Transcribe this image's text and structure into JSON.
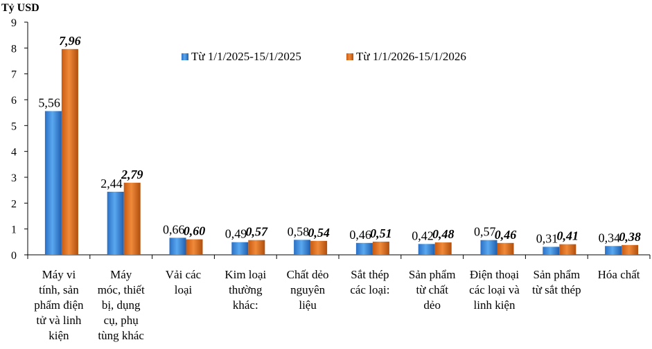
{
  "chart_data": {
    "type": "bar",
    "ylabel": "Tỷ USD",
    "ylim": [
      0,
      9
    ],
    "yticks": [
      0,
      1,
      2,
      3,
      4,
      5,
      6,
      7,
      8,
      9
    ],
    "grid": false,
    "legend_position": "top-center",
    "categories": [
      [
        "Máy vi",
        "tính, sản",
        "phẩm điện",
        "tử và linh",
        "kiện"
      ],
      [
        "Máy",
        "móc, thiết",
        "bị, dụng",
        "cụ, phụ",
        "tùng khác"
      ],
      [
        "Vải các",
        "loại"
      ],
      [
        "Kim loại",
        "thường",
        "khác:"
      ],
      [
        "Chất dẻo",
        "nguyên",
        "liệu"
      ],
      [
        "Sắt thép",
        "các loại:"
      ],
      [
        "Sản phẩm",
        "từ chất",
        "dẻo"
      ],
      [
        "Điện thoại",
        "các loại và",
        "linh kiện"
      ],
      [
        "Sản phẩm",
        "từ sắt thép"
      ],
      [
        "Hóa chất"
      ]
    ],
    "series": [
      {
        "name": "Từ 1/1/2025-15/1/2025",
        "color": "#3e8ee0",
        "values": [
          5.56,
          2.44,
          0.66,
          0.49,
          0.58,
          0.46,
          0.42,
          0.57,
          0.31,
          0.34
        ],
        "labels": [
          "5,56",
          "2,44",
          "0,66",
          "0,49",
          "0,58",
          "0,46",
          "0,42",
          "0,57",
          "0,31",
          "0,34"
        ]
      },
      {
        "name": "Từ 1/1/2026-15/1/2026",
        "color": "#e07020",
        "values": [
          7.96,
          2.79,
          0.6,
          0.57,
          0.54,
          0.51,
          0.48,
          0.46,
          0.41,
          0.38
        ],
        "labels": [
          "7,96",
          "2,79",
          "0,60",
          "0,57",
          "0,54",
          "0,51",
          "0,48",
          "0,46",
          "0,41",
          "0,38"
        ]
      }
    ]
  }
}
